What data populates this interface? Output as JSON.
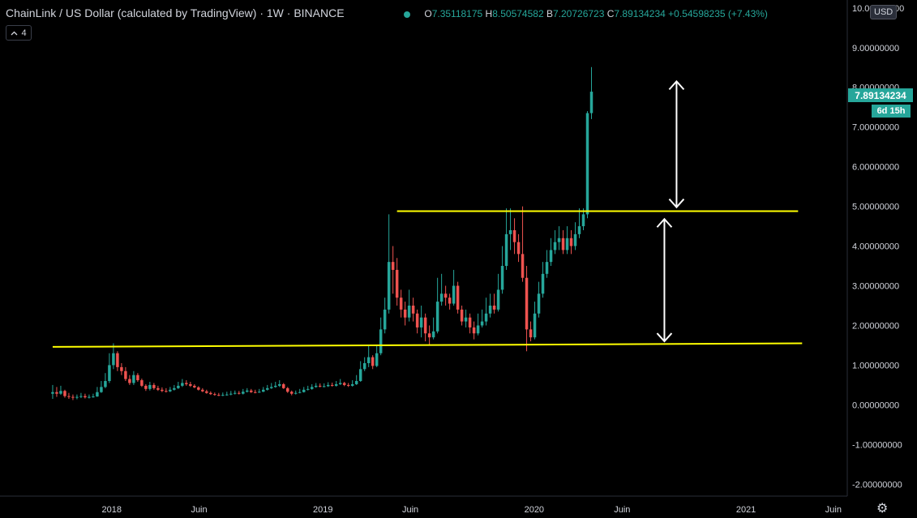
{
  "header": {
    "title": "ChainLink / US Dollar (calculated by TradingView) · 1W · BINANCE",
    "open_label": "O",
    "open": "7.35118175",
    "high_label": "H",
    "high": "8.50574582",
    "low_label": "B",
    "low": "7.20726723",
    "close_label": "C",
    "close": "7.89134234",
    "change": "+0.54598235 (+7.43%)"
  },
  "collapse_count": "4",
  "currency": "USD",
  "last_price": "7.89134234",
  "candle_countdown": "6d 15h",
  "colors": {
    "up": "#26a69a",
    "down": "#ef5350",
    "levels": "#ffff00",
    "arrows": "#ffffff",
    "background": "#000000",
    "axis_text": "#d1d4dc"
  },
  "icons": {
    "settings": "gear-icon",
    "collapse": "chevron-up-icon",
    "status": "status-dot-icon"
  },
  "chart_data": {
    "type": "candlestick",
    "interval": "1W",
    "ylim": [
      -2.3,
      10.2
    ],
    "y_ticks": [
      "10.00000000",
      "9.00000000",
      "8.00000000",
      "7.00000000",
      "6.00000000",
      "5.00000000",
      "4.00000000",
      "3.00000000",
      "2.00000000",
      "1.00000000",
      "0.00000000",
      "-1.00000000",
      "-2.00000000"
    ],
    "y_tick_values": [
      10,
      9,
      8,
      7,
      6,
      5,
      4,
      3,
      2,
      1,
      0,
      -1,
      -2
    ],
    "x_ticks": [
      {
        "label": "2018",
        "date": "2018-01-01"
      },
      {
        "label": "Juin",
        "date": "2018-06-01"
      },
      {
        "label": "2019",
        "date": "2019-01-01"
      },
      {
        "label": "Juin",
        "date": "2019-06-01"
      },
      {
        "label": "2020",
        "date": "2020-01-01"
      },
      {
        "label": "Juin",
        "date": "2020-06-01"
      },
      {
        "label": "2021",
        "date": "2021-01-01"
      },
      {
        "label": "Juin",
        "date": "2021-06-01"
      }
    ],
    "x_range": [
      "2017-06-22",
      "2021-06-25"
    ],
    "series_start": "2017-09-21",
    "closes": [
      0.32,
      0.28,
      0.35,
      0.22,
      0.2,
      0.18,
      0.2,
      0.22,
      0.19,
      0.2,
      0.21,
      0.32,
      0.45,
      0.6,
      1.0,
      1.3,
      0.95,
      0.85,
      0.65,
      0.55,
      0.75,
      0.62,
      0.48,
      0.4,
      0.5,
      0.42,
      0.38,
      0.35,
      0.34,
      0.38,
      0.42,
      0.48,
      0.55,
      0.52,
      0.48,
      0.44,
      0.38,
      0.34,
      0.3,
      0.27,
      0.25,
      0.24,
      0.25,
      0.26,
      0.28,
      0.3,
      0.28,
      0.33,
      0.36,
      0.32,
      0.31,
      0.33,
      0.38,
      0.42,
      0.45,
      0.48,
      0.52,
      0.42,
      0.33,
      0.28,
      0.3,
      0.32,
      0.38,
      0.4,
      0.45,
      0.48,
      0.46,
      0.47,
      0.5,
      0.48,
      0.52,
      0.55,
      0.5,
      0.48,
      0.52,
      0.6,
      0.9,
      1.05,
      1.2,
      0.98,
      1.3,
      1.9,
      2.4,
      3.6,
      3.4,
      2.7,
      2.4,
      2.2,
      2.5,
      2.3,
      1.95,
      2.2,
      1.8,
      1.7,
      1.85,
      2.6,
      2.8,
      2.7,
      2.55,
      3.0,
      2.4,
      2.1,
      2.2,
      1.95,
      1.8,
      2.0,
      2.1,
      2.3,
      2.5,
      2.4,
      2.9,
      3.5,
      4.3,
      4.4,
      4.1,
      3.8,
      3.2,
      1.9,
      1.7,
      2.3,
      2.8,
      3.3,
      3.6,
      3.9,
      4.1,
      4.2,
      3.9,
      4.2,
      4.0,
      4.3,
      4.5,
      4.8,
      7.35,
      7.89
    ],
    "opens": [
      0.28,
      0.32,
      0.28,
      0.35,
      0.22,
      0.2,
      0.18,
      0.2,
      0.22,
      0.19,
      0.2,
      0.21,
      0.32,
      0.45,
      0.6,
      1.0,
      1.3,
      0.95,
      0.85,
      0.65,
      0.55,
      0.75,
      0.62,
      0.48,
      0.4,
      0.5,
      0.42,
      0.38,
      0.35,
      0.34,
      0.38,
      0.42,
      0.48,
      0.55,
      0.52,
      0.48,
      0.44,
      0.38,
      0.34,
      0.3,
      0.27,
      0.25,
      0.24,
      0.25,
      0.26,
      0.28,
      0.3,
      0.28,
      0.33,
      0.36,
      0.32,
      0.31,
      0.33,
      0.38,
      0.42,
      0.45,
      0.48,
      0.52,
      0.42,
      0.33,
      0.28,
      0.3,
      0.32,
      0.38,
      0.4,
      0.45,
      0.48,
      0.46,
      0.47,
      0.5,
      0.48,
      0.52,
      0.55,
      0.5,
      0.48,
      0.52,
      0.6,
      0.9,
      1.05,
      1.2,
      0.98,
      1.3,
      1.9,
      2.4,
      3.6,
      3.4,
      2.7,
      2.4,
      2.2,
      2.5,
      2.3,
      1.95,
      2.2,
      1.8,
      1.7,
      1.85,
      2.6,
      2.8,
      2.7,
      2.55,
      3.0,
      2.4,
      2.1,
      2.2,
      1.95,
      1.8,
      2.0,
      2.1,
      2.3,
      2.5,
      2.4,
      2.9,
      3.5,
      4.3,
      4.4,
      4.1,
      3.8,
      3.2,
      1.9,
      1.7,
      2.3,
      2.8,
      3.3,
      3.6,
      3.9,
      4.1,
      4.2,
      3.9,
      4.2,
      4.0,
      4.3,
      4.5,
      4.8,
      7.35
    ],
    "highs": [
      0.5,
      0.45,
      0.48,
      0.38,
      0.3,
      0.26,
      0.26,
      0.3,
      0.28,
      0.26,
      0.28,
      0.45,
      0.6,
      0.8,
      1.3,
      1.55,
      1.35,
      1.05,
      0.95,
      0.75,
      0.85,
      0.8,
      0.66,
      0.52,
      0.58,
      0.55,
      0.48,
      0.44,
      0.42,
      0.45,
      0.5,
      0.58,
      0.65,
      0.62,
      0.58,
      0.52,
      0.47,
      0.42,
      0.38,
      0.34,
      0.31,
      0.3,
      0.31,
      0.33,
      0.35,
      0.36,
      0.35,
      0.4,
      0.42,
      0.4,
      0.38,
      0.4,
      0.45,
      0.5,
      0.55,
      0.58,
      0.62,
      0.55,
      0.45,
      0.36,
      0.36,
      0.4,
      0.45,
      0.48,
      0.52,
      0.55,
      0.54,
      0.54,
      0.57,
      0.56,
      0.6,
      0.65,
      0.58,
      0.55,
      0.62,
      0.75,
      1.1,
      1.2,
      1.5,
      1.25,
      1.5,
      2.2,
      2.7,
      4.8,
      4.0,
      3.7,
      2.9,
      2.6,
      2.9,
      2.7,
      2.4,
      2.5,
      2.3,
      2.0,
      2.2,
      3.2,
      3.3,
      3.0,
      2.8,
      3.4,
      3.1,
      2.5,
      2.4,
      2.3,
      2.1,
      2.3,
      2.4,
      2.7,
      2.8,
      2.8,
      3.3,
      4.0,
      4.95,
      4.95,
      4.7,
      4.3,
      5.0,
      3.5,
      2.1,
      2.6,
      3.1,
      3.6,
      3.9,
      4.2,
      4.4,
      4.5,
      4.4,
      4.5,
      4.4,
      4.6,
      4.95,
      4.95,
      7.4,
      8.51
    ],
    "lows": [
      0.15,
      0.2,
      0.25,
      0.18,
      0.15,
      0.12,
      0.14,
      0.17,
      0.16,
      0.16,
      0.18,
      0.2,
      0.3,
      0.42,
      0.55,
      0.9,
      0.85,
      0.75,
      0.6,
      0.5,
      0.5,
      0.58,
      0.45,
      0.35,
      0.36,
      0.38,
      0.35,
      0.32,
      0.31,
      0.32,
      0.36,
      0.4,
      0.45,
      0.48,
      0.45,
      0.42,
      0.36,
      0.32,
      0.28,
      0.25,
      0.23,
      0.22,
      0.22,
      0.23,
      0.24,
      0.26,
      0.26,
      0.26,
      0.31,
      0.3,
      0.29,
      0.3,
      0.32,
      0.36,
      0.4,
      0.43,
      0.45,
      0.4,
      0.3,
      0.24,
      0.26,
      0.29,
      0.31,
      0.36,
      0.38,
      0.43,
      0.44,
      0.44,
      0.45,
      0.46,
      0.46,
      0.5,
      0.47,
      0.45,
      0.46,
      0.5,
      0.58,
      0.85,
      0.95,
      0.9,
      0.95,
      1.25,
      1.8,
      2.3,
      2.8,
      2.5,
      2.2,
      2.0,
      2.1,
      2.1,
      1.8,
      1.7,
      1.6,
      1.5,
      1.65,
      1.8,
      2.5,
      2.5,
      2.4,
      2.5,
      2.3,
      2.0,
      1.95,
      1.8,
      1.65,
      1.75,
      1.95,
      2.0,
      2.2,
      2.3,
      2.35,
      2.8,
      3.4,
      3.9,
      3.8,
      3.6,
      3.1,
      1.35,
      1.6,
      1.65,
      2.2,
      2.7,
      3.2,
      3.5,
      3.8,
      3.9,
      3.8,
      3.8,
      3.8,
      3.9,
      4.2,
      4.4,
      4.7,
      7.2
    ],
    "levels": [
      {
        "start": "2017-09-21",
        "end": "2021-04-08",
        "start_value": 1.46,
        "end_value": 1.55
      },
      {
        "start": "2019-05-09",
        "end": "2021-04-01",
        "start_value": 4.88,
        "end_value": 4.88
      }
    ],
    "measure_arrows": [
      {
        "date": "2020-09-03",
        "from": 4.98,
        "to": 8.15
      },
      {
        "date": "2020-08-13",
        "from": 4.68,
        "to": 1.6
      }
    ]
  }
}
